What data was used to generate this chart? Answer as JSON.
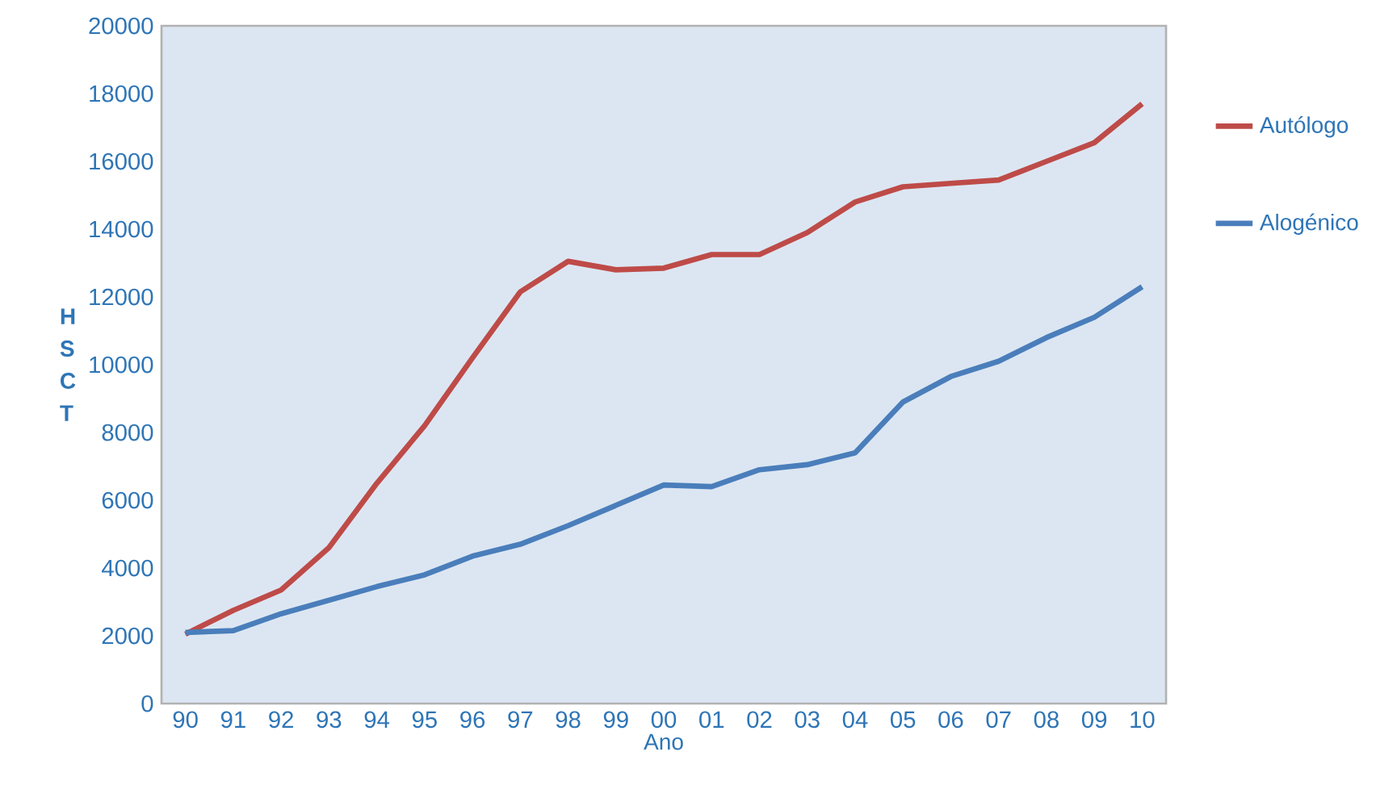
{
  "chart_data": {
    "type": "line",
    "xlabel": "Ano",
    "ylabel": "H S C T",
    "categories": [
      "90",
      "91",
      "92",
      "93",
      "94",
      "95",
      "96",
      "97",
      "98",
      "99",
      "00",
      "01",
      "02",
      "03",
      "04",
      "05",
      "06",
      "07",
      "08",
      "09",
      "10"
    ],
    "series": [
      {
        "name": "Autólogo",
        "color": "#be4b48",
        "values": [
          2050,
          2750,
          3350,
          4600,
          6500,
          8200,
          10200,
          12150,
          13050,
          12800,
          12850,
          13250,
          13250,
          13900,
          14800,
          15250,
          15350,
          15450,
          16000,
          16550,
          17700
        ]
      },
      {
        "name": "Alogénico",
        "color": "#4a7ebb",
        "values": [
          2100,
          2150,
          2650,
          3050,
          3450,
          3800,
          4350,
          4700,
          5250,
          5850,
          6450,
          6400,
          6900,
          7050,
          7400,
          8900,
          9650,
          10100,
          10800,
          11400,
          12300
        ]
      }
    ],
    "ylim": [
      0,
      20000
    ],
    "yticks": [
      0,
      2000,
      4000,
      6000,
      8000,
      10000,
      12000,
      14000,
      16000,
      18000,
      20000
    ],
    "grid": false,
    "legend": "right",
    "marker": "none",
    "line_style": "solid"
  }
}
